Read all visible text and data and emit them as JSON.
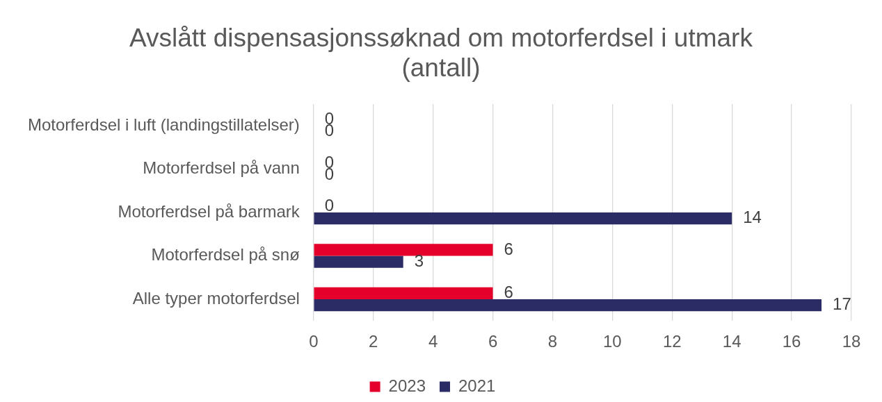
{
  "chart_data": {
    "type": "bar",
    "orientation": "horizontal",
    "title": "Avslått dispensasjonssøknad om motorferdsel i utmark (antall)",
    "categories": [
      "Motorferdsel i luft (landingstillatelser)",
      "Motorferdsel på vann",
      "Motorferdsel på barmark",
      "Motorferdsel på snø",
      "Alle typer motorferdsel"
    ],
    "series": [
      {
        "name": "2023",
        "color": "#e4002b",
        "values": [
          0,
          0,
          0,
          6,
          6
        ]
      },
      {
        "name": "2021",
        "color": "#2b2c66",
        "values": [
          0,
          0,
          14,
          3,
          17
        ]
      }
    ],
    "xlim": [
      0,
      18
    ],
    "xticks": [
      0,
      2,
      4,
      6,
      8,
      10,
      12,
      14,
      16,
      18
    ],
    "grid": "x",
    "legend": "bottom",
    "data_labels": true
  }
}
